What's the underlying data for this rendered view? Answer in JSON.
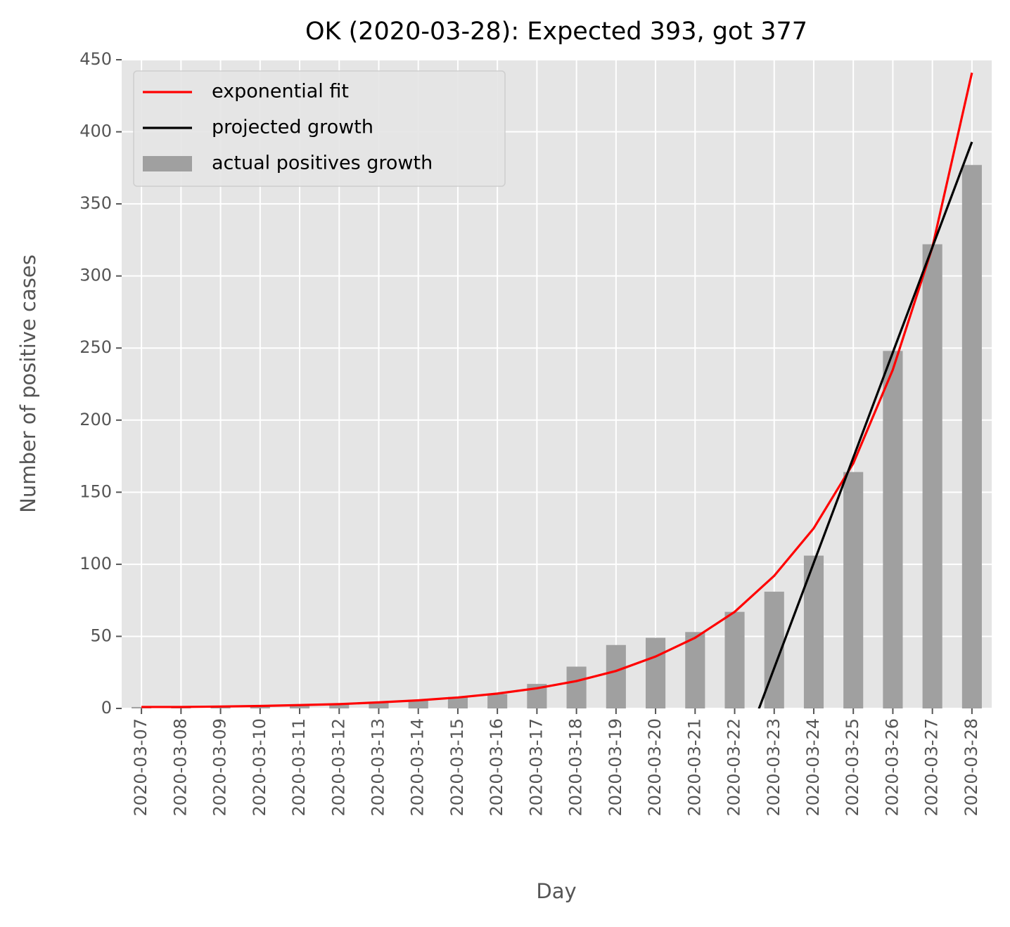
{
  "chart_data": {
    "type": "bar_line",
    "title": "OK (2020-03-28): Expected 393, got 377",
    "xlabel": "Day",
    "ylabel": "Number of positive cases",
    "categories": [
      "2020-03-07",
      "2020-03-08",
      "2020-03-09",
      "2020-03-10",
      "2020-03-11",
      "2020-03-12",
      "2020-03-13",
      "2020-03-14",
      "2020-03-15",
      "2020-03-16",
      "2020-03-17",
      "2020-03-18",
      "2020-03-19",
      "2020-03-20",
      "2020-03-21",
      "2020-03-22",
      "2020-03-23",
      "2020-03-24",
      "2020-03-25",
      "2020-03-26",
      "2020-03-27",
      "2020-03-28"
    ],
    "series": [
      {
        "name": "exponential fit",
        "kind": "line",
        "color": "#ff0000",
        "values": [
          1,
          1,
          1.3,
          1.7,
          2.3,
          3,
          4.2,
          5.6,
          7.6,
          10.3,
          14,
          19,
          26,
          36,
          49,
          67,
          92,
          125,
          170,
          235,
          320,
          441
        ]
      },
      {
        "name": "projected growth",
        "kind": "line",
        "color": "#000000",
        "values": [
          null,
          null,
          null,
          null,
          null,
          null,
          null,
          null,
          null,
          null,
          null,
          null,
          null,
          null,
          null,
          -45,
          28,
          101,
          174,
          247,
          320,
          393
        ]
      },
      {
        "name": "actual positives growth",
        "kind": "bar",
        "color": "#a0a0a0",
        "values": [
          1,
          1,
          1,
          2,
          2,
          3,
          4,
          6,
          8,
          10,
          17,
          29,
          44,
          49,
          53,
          67,
          81,
          106,
          164,
          248,
          322,
          377
        ]
      }
    ],
    "ylim": [
      0,
      450
    ],
    "yticks": [
      0,
      50,
      100,
      150,
      200,
      250,
      300,
      350,
      400,
      450
    ],
    "grid": true,
    "legend": "upper left"
  }
}
